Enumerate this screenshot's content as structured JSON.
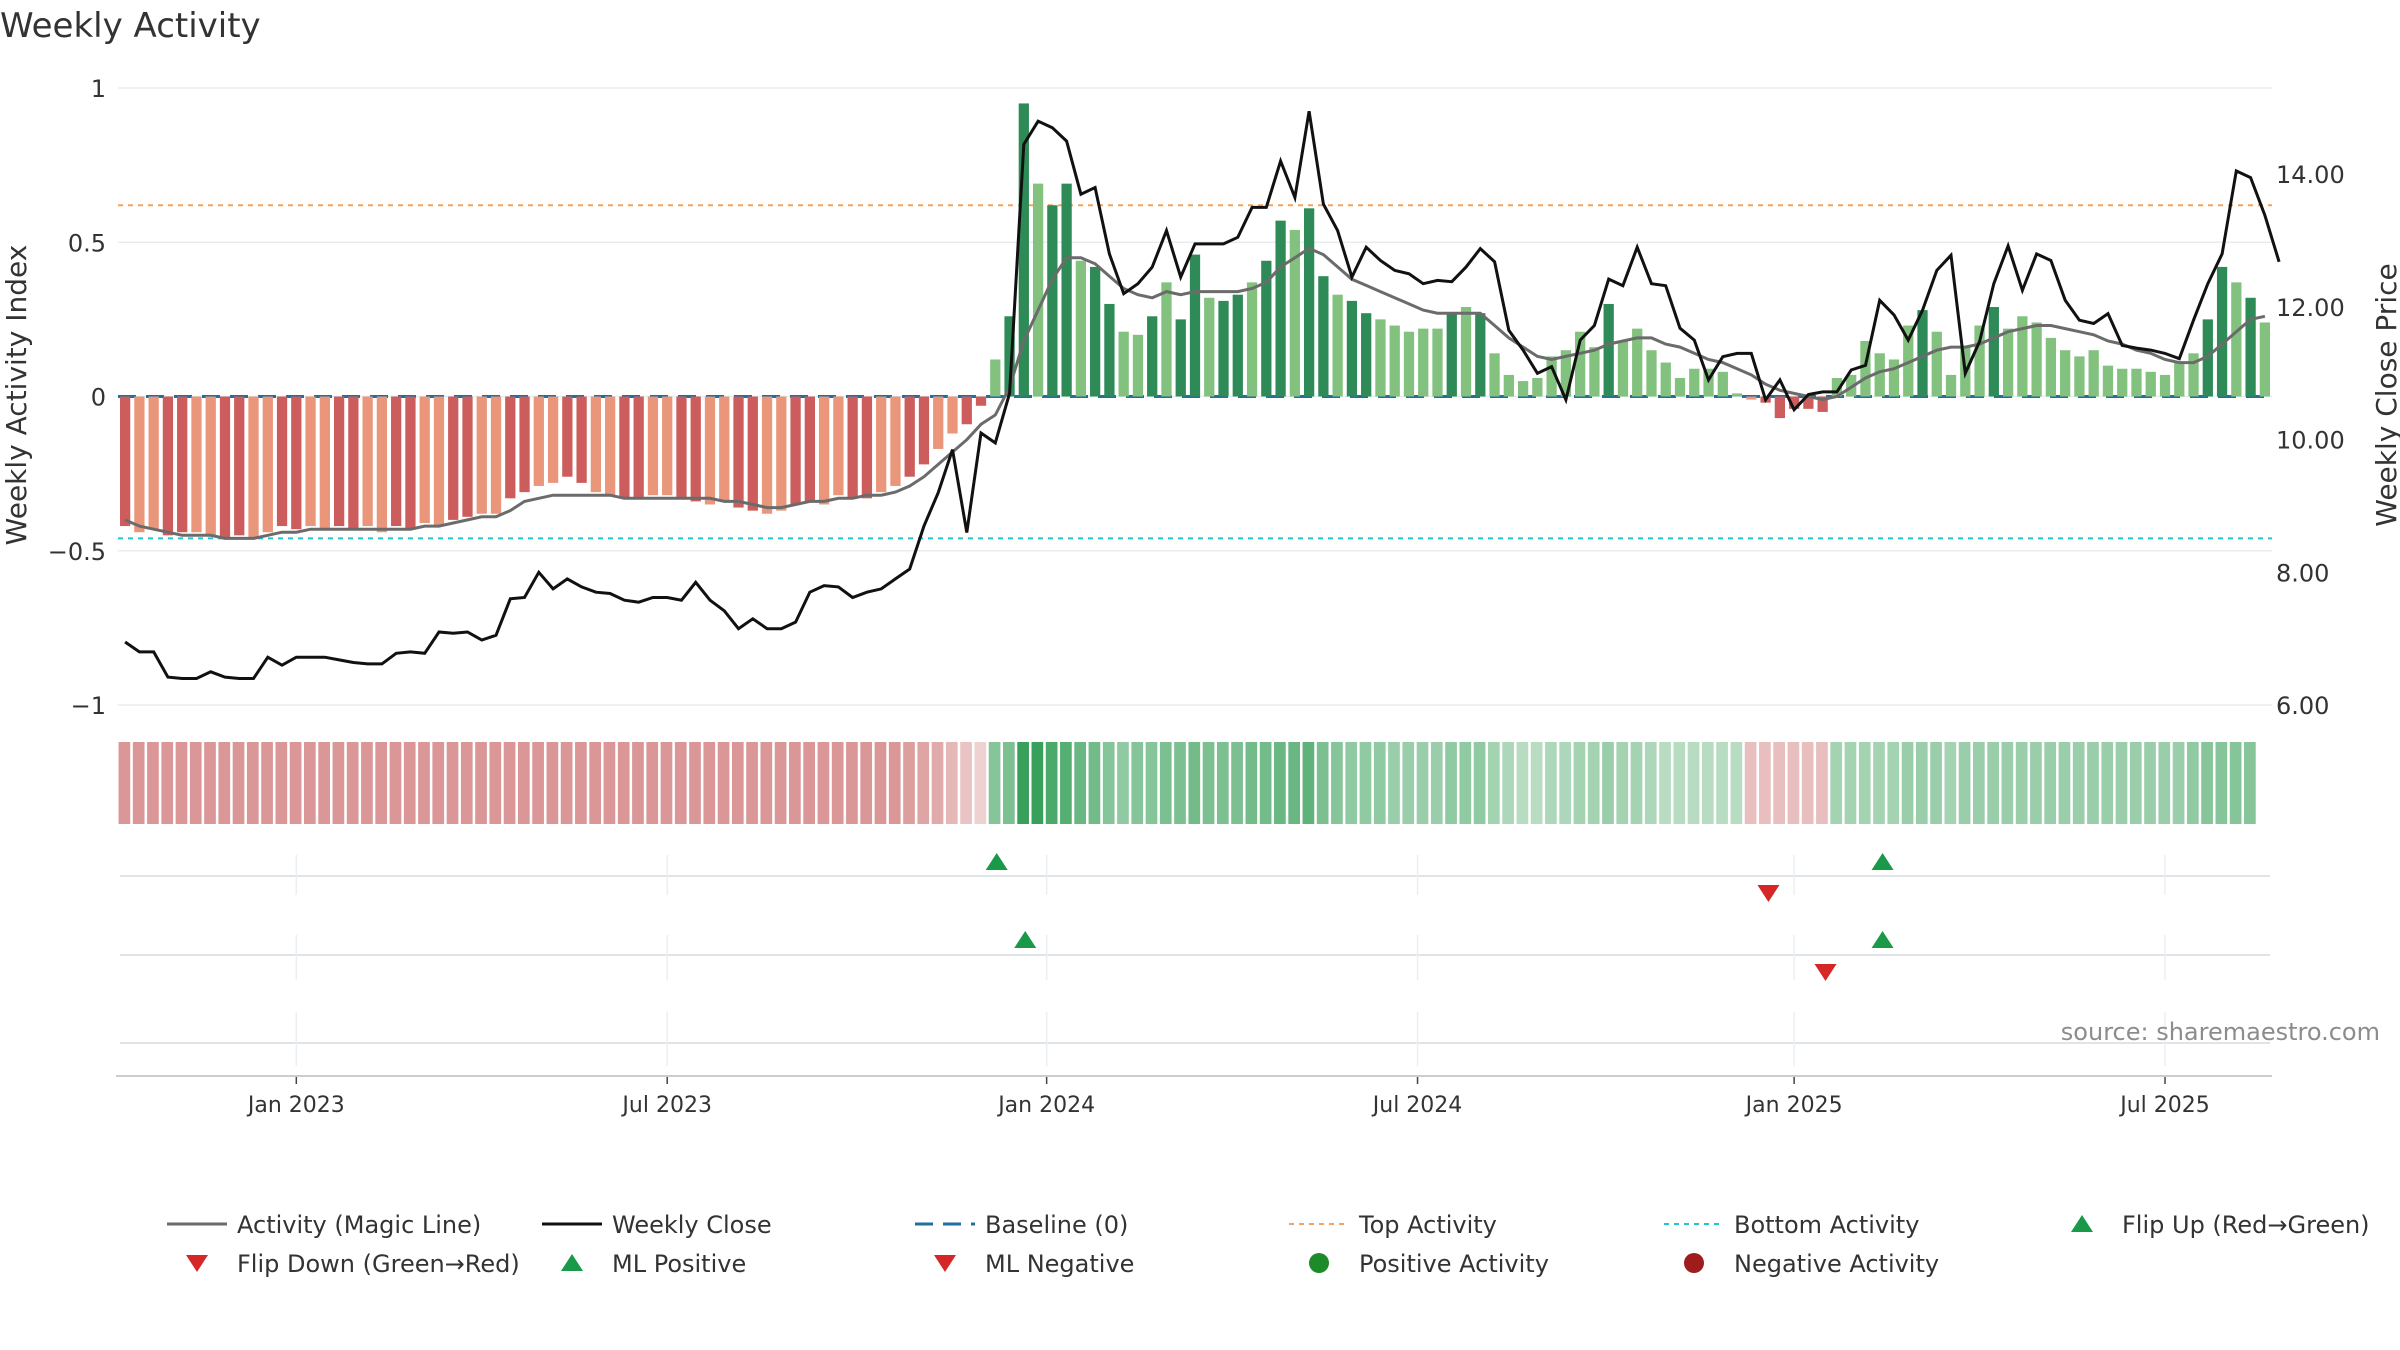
{
  "chart_data": {
    "type": "bar",
    "title": "Weekly Activity",
    "ylabel": "Weekly Activity Index",
    "ylabel_right": "Weekly Close Price",
    "source": "source: sharemaestro.com",
    "ylim": [
      -1,
      1
    ],
    "ylim_right": [
      6,
      15.3
    ],
    "y_ticks": [
      {
        "v": 1,
        "label": "1"
      },
      {
        "v": 0.5,
        "label": "0.5"
      },
      {
        "v": 0,
        "label": "0"
      },
      {
        "v": -0.5,
        "label": "−0.5"
      },
      {
        "v": -1,
        "label": "−1"
      }
    ],
    "y_ticks_right": [
      {
        "v": 14,
        "label": "14.00"
      },
      {
        "v": 12,
        "label": "12.00"
      },
      {
        "v": 10,
        "label": "10.00"
      },
      {
        "v": 8,
        "label": "8.00"
      },
      {
        "v": 6,
        "label": "6.00"
      }
    ],
    "x_start": "2022-10-17",
    "x_ticks": [
      {
        "week": 12,
        "label": "Jan 2023"
      },
      {
        "week": 38,
        "label": "Jul 2023"
      },
      {
        "week": 64.6,
        "label": "Jan 2024"
      },
      {
        "week": 90.6,
        "label": "Jul 2024"
      },
      {
        "week": 117,
        "label": "Jan 2025"
      },
      {
        "week": 143,
        "label": "Jul 2025"
      }
    ],
    "top_activity": 0.62,
    "bottom_activity": -0.46,
    "activity": [
      -0.42,
      -0.44,
      -0.43,
      -0.45,
      -0.44,
      -0.44,
      -0.45,
      -0.46,
      -0.45,
      -0.46,
      -0.44,
      -0.42,
      -0.43,
      -0.42,
      -0.43,
      -0.42,
      -0.43,
      -0.42,
      -0.44,
      -0.42,
      -0.43,
      -0.41,
      -0.42,
      -0.4,
      -0.39,
      -0.38,
      -0.38,
      -0.33,
      -0.31,
      -0.29,
      -0.28,
      -0.26,
      -0.28,
      -0.31,
      -0.32,
      -0.33,
      -0.33,
      -0.32,
      -0.32,
      -0.33,
      -0.34,
      -0.35,
      -0.34,
      -0.36,
      -0.37,
      -0.38,
      -0.37,
      -0.35,
      -0.34,
      -0.35,
      -0.32,
      -0.33,
      -0.33,
      -0.31,
      -0.29,
      -0.26,
      -0.22,
      -0.17,
      -0.12,
      -0.09,
      -0.03,
      0.12,
      0.26,
      0.95,
      0.69,
      0.62,
      0.69,
      0.44,
      0.42,
      0.3,
      0.21,
      0.2,
      0.26,
      0.37,
      0.25,
      0.46,
      0.32,
      0.31,
      0.33,
      0.37,
      0.44,
      0.57,
      0.54,
      0.61,
      0.39,
      0.33,
      0.31,
      0.27,
      0.25,
      0.23,
      0.21,
      0.22,
      0.22,
      0.27,
      0.29,
      0.27,
      0.14,
      0.07,
      0.05,
      0.06,
      0.13,
      0.15,
      0.21,
      0.16,
      0.3,
      0.18,
      0.22,
      0.15,
      0.11,
      0.06,
      0.09,
      0.09,
      0.08,
      0.01,
      -0.01,
      -0.02,
      -0.07,
      -0.04,
      -0.04,
      -0.05,
      0.06,
      0.07,
      0.18,
      0.14,
      0.12,
      0.23,
      0.28,
      0.21,
      0.07,
      0.16,
      0.23,
      0.29,
      0.22,
      0.26,
      0.24,
      0.19,
      0.15,
      0.13,
      0.15,
      0.1,
      0.09,
      0.09,
      0.08,
      0.07,
      0.11,
      0.14,
      0.25,
      0.42,
      0.37,
      0.32,
      0.24
    ],
    "magic_line": [
      -0.4,
      -0.42,
      -0.43,
      -0.44,
      -0.45,
      -0.45,
      -0.45,
      -0.46,
      -0.46,
      -0.46,
      -0.45,
      -0.44,
      -0.44,
      -0.43,
      -0.43,
      -0.43,
      -0.43,
      -0.43,
      -0.43,
      -0.43,
      -0.43,
      -0.42,
      -0.42,
      -0.41,
      -0.4,
      -0.39,
      -0.39,
      -0.37,
      -0.34,
      -0.33,
      -0.32,
      -0.32,
      -0.32,
      -0.32,
      -0.32,
      -0.33,
      -0.33,
      -0.33,
      -0.33,
      -0.33,
      -0.33,
      -0.33,
      -0.34,
      -0.34,
      -0.35,
      -0.36,
      -0.36,
      -0.35,
      -0.34,
      -0.34,
      -0.33,
      -0.33,
      -0.32,
      -0.32,
      -0.31,
      -0.29,
      -0.26,
      -0.22,
      -0.18,
      -0.14,
      -0.09,
      -0.06,
      0.03,
      0.18,
      0.28,
      0.38,
      0.45,
      0.45,
      0.43,
      0.39,
      0.35,
      0.33,
      0.32,
      0.34,
      0.33,
      0.34,
      0.34,
      0.34,
      0.34,
      0.35,
      0.37,
      0.42,
      0.45,
      0.48,
      0.46,
      0.42,
      0.38,
      0.36,
      0.34,
      0.32,
      0.3,
      0.28,
      0.27,
      0.27,
      0.27,
      0.27,
      0.23,
      0.19,
      0.16,
      0.13,
      0.12,
      0.13,
      0.14,
      0.15,
      0.17,
      0.18,
      0.19,
      0.19,
      0.17,
      0.16,
      0.14,
      0.12,
      0.11,
      0.09,
      0.07,
      0.04,
      0.02,
      0.01,
      0,
      -0.01,
      0,
      0.03,
      0.06,
      0.08,
      0.09,
      0.11,
      0.13,
      0.15,
      0.16,
      0.16,
      0.17,
      0.19,
      0.21,
      0.22,
      0.23,
      0.23,
      0.22,
      0.21,
      0.2,
      0.18,
      0.17,
      0.15,
      0.14,
      0.12,
      0.11,
      0.11,
      0.13,
      0.17,
      0.21,
      0.25,
      0.26
    ],
    "weekly_close": [
      6.95,
      6.8,
      6.8,
      6.42,
      6.4,
      6.4,
      6.5,
      6.42,
      6.4,
      6.4,
      6.72,
      6.6,
      6.72,
      6.72,
      6.72,
      6.68,
      6.64,
      6.62,
      6.62,
      6.78,
      6.8,
      6.78,
      7.1,
      7.08,
      7.1,
      6.98,
      7.05,
      7.6,
      7.62,
      8.0,
      7.75,
      7.9,
      7.78,
      7.7,
      7.68,
      7.58,
      7.55,
      7.62,
      7.62,
      7.58,
      7.85,
      7.58,
      7.42,
      7.15,
      7.3,
      7.15,
      7.15,
      7.25,
      7.7,
      7.8,
      7.78,
      7.62,
      7.7,
      7.75,
      7.9,
      8.05,
      8.7,
      9.2,
      9.85,
      8.6,
      10.1,
      9.95,
      10.7,
      14.45,
      14.8,
      14.7,
      14.5,
      13.7,
      13.8,
      12.8,
      12.2,
      12.35,
      12.6,
      13.15,
      12.45,
      12.95,
      12.95,
      12.95,
      13.05,
      13.5,
      13.5,
      14.2,
      13.65,
      14.95,
      13.55,
      13.15,
      12.45,
      12.9,
      12.7,
      12.55,
      12.5,
      12.35,
      12.4,
      12.38,
      12.6,
      12.88,
      12.68,
      11.65,
      11.35,
      11.0,
      11.1,
      10.6,
      11.5,
      11.72,
      12.42,
      12.32,
      12.9,
      12.35,
      12.32,
      11.68,
      11.5,
      10.9,
      11.25,
      11.3,
      11.3,
      10.6,
      10.9,
      10.45,
      10.68,
      10.72,
      10.72,
      11.05,
      11.12,
      12.1,
      11.88,
      11.5,
      11.95,
      12.55,
      12.78,
      11.0,
      11.48,
      12.35,
      12.92,
      12.25,
      12.8,
      12.7,
      12.1,
      11.8,
      11.75,
      11.9,
      11.42,
      11.38,
      11.35,
      11.3,
      11.22,
      11.8,
      12.35,
      12.8,
      14.05,
      13.95,
      13.38,
      12.68
    ],
    "strip_levels": [
      -0.6,
      -0.6,
      -0.6,
      -0.6,
      -0.6,
      -0.6,
      -0.6,
      -0.6,
      -0.6,
      -0.6,
      -0.6,
      -0.6,
      -0.6,
      -0.6,
      -0.6,
      -0.6,
      -0.6,
      -0.6,
      -0.6,
      -0.6,
      -0.6,
      -0.6,
      -0.6,
      -0.6,
      -0.6,
      -0.6,
      -0.6,
      -0.6,
      -0.6,
      -0.6,
      -0.6,
      -0.6,
      -0.6,
      -0.6,
      -0.6,
      -0.6,
      -0.6,
      -0.6,
      -0.6,
      -0.6,
      -0.6,
      -0.6,
      -0.6,
      -0.6,
      -0.6,
      -0.6,
      -0.6,
      -0.6,
      -0.6,
      -0.6,
      -0.6,
      -0.6,
      -0.6,
      -0.6,
      -0.6,
      -0.55,
      -0.5,
      -0.45,
      -0.35,
      -0.25,
      -0.15,
      0.55,
      0.6,
      0.95,
      0.95,
      0.85,
      0.8,
      0.7,
      0.65,
      0.55,
      0.5,
      0.55,
      0.55,
      0.6,
      0.6,
      0.65,
      0.6,
      0.6,
      0.6,
      0.65,
      0.65,
      0.7,
      0.7,
      0.75,
      0.6,
      0.55,
      0.5,
      0.5,
      0.5,
      0.45,
      0.45,
      0.45,
      0.45,
      0.5,
      0.5,
      0.5,
      0.4,
      0.35,
      0.3,
      0.3,
      0.35,
      0.35,
      0.4,
      0.4,
      0.45,
      0.4,
      0.4,
      0.35,
      0.3,
      0.3,
      0.3,
      0.3,
      0.3,
      0.3,
      -0.3,
      -0.3,
      -0.3,
      -0.3,
      -0.3,
      -0.3,
      0.4,
      0.4,
      0.4,
      0.4,
      0.4,
      0.45,
      0.45,
      0.45,
      0.4,
      0.45,
      0.45,
      0.45,
      0.45,
      0.45,
      0.45,
      0.45,
      0.45,
      0.45,
      0.45,
      0.45,
      0.45,
      0.45,
      0.45,
      0.45,
      0.45,
      0.5,
      0.55,
      0.55,
      0.55,
      0.55
    ],
    "flip_up_weeks": [
      61.1,
      123.2
    ],
    "flip_down_weeks": [
      115.2
    ],
    "ml_positive_weeks": [
      63.1,
      123.2
    ],
    "ml_negative_weeks": [
      119.2
    ],
    "legend": [
      {
        "key": "magic",
        "label": "Activity (Magic Line)"
      },
      {
        "key": "close",
        "label": "Weekly Close"
      },
      {
        "key": "baseline",
        "label": "Baseline (0)"
      },
      {
        "key": "top",
        "label": "Top Activity"
      },
      {
        "key": "bottom",
        "label": "Bottom Activity"
      },
      {
        "key": "flipup",
        "label": "Flip Up (Red→Green)"
      },
      {
        "key": "flipdown",
        "label": "Flip Down (Green→Red)"
      },
      {
        "key": "mlpos",
        "label": "ML Positive"
      },
      {
        "key": "mlneg",
        "label": "ML Negative"
      },
      {
        "key": "posact",
        "label": "Positive Activity"
      },
      {
        "key": "negact",
        "label": "Negative Activity"
      }
    ],
    "colors": {
      "pos_dark": "#2e8b57",
      "pos_light": "#82c17e",
      "neg_dark": "#cd5c5c",
      "neg_light": "#e9967a",
      "magic_line": "#6b6b6b",
      "close_line": "#111111",
      "baseline": "#1f6f9f",
      "top": "#f4a460",
      "bottom": "#20c5cf",
      "marker_up": "#1a9a48",
      "marker_down": "#d62728",
      "pos_dot": "#1e8b2a",
      "neg_dot": "#a01c1c"
    }
  }
}
